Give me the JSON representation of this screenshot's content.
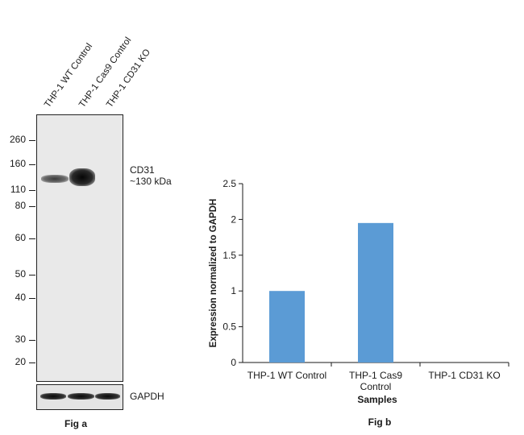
{
  "fig_a": {
    "lanes": [
      "THP-1 WT Control",
      "THP-1 Cas9 Control",
      "THP-1 CD31 KO"
    ],
    "markers": [
      {
        "label": "260",
        "kda": 260
      },
      {
        "label": "160",
        "kda": 160
      },
      {
        "label": "110",
        "kda": 110
      },
      {
        "label": "80",
        "kda": 80
      },
      {
        "label": "60",
        "kda": 60
      },
      {
        "label": "50",
        "kda": 50
      },
      {
        "label": "40",
        "kda": 40
      },
      {
        "label": "30",
        "kda": 30
      },
      {
        "label": "20",
        "kda": 20
      }
    ],
    "target_name": "CD31",
    "target_size": "~130 kDa",
    "loading_control": "GAPDH",
    "caption": "Fig a"
  },
  "chart_data": {
    "type": "bar",
    "categories": [
      "THP-1 WT Control",
      "THP-1 Cas9 Control",
      "THP-1 CD31 KO"
    ],
    "category_lines": [
      [
        "THP-1 WT Control"
      ],
      [
        "THP-1 Cas9",
        "Control"
      ],
      [
        "THP-1 CD31 KO"
      ]
    ],
    "values": [
      1.0,
      1.95,
      0
    ],
    "xlabel": "Samples",
    "ylabel": "Expression normalized to GAPDH",
    "ylim": [
      0,
      2.5
    ],
    "yticks": [
      0,
      0.5,
      1,
      1.5,
      2,
      2.5
    ],
    "ytick_labels": [
      "0",
      "0.5",
      "1",
      "1.5",
      "2",
      "2.5"
    ],
    "grid": false,
    "bar_color": "#5b9bd5",
    "caption": "Fig b"
  }
}
